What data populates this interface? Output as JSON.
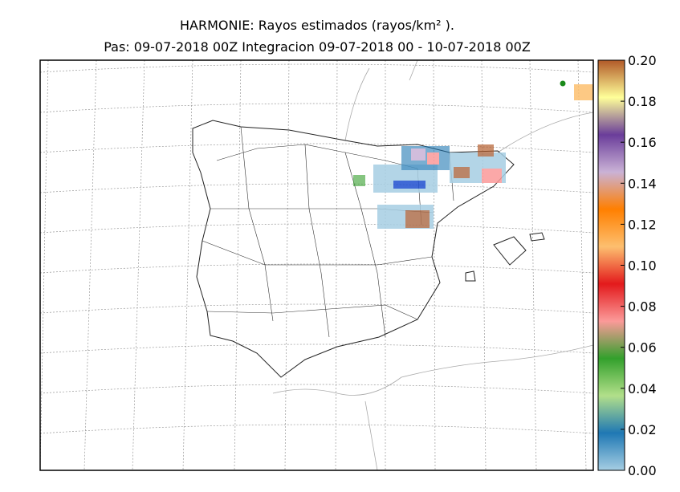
{
  "map": {
    "title": "HARMONIE: Rayos estimados  (rayos/km² ).",
    "subtitle": "Pas: 09-07-2018 00Z Integracion 09-07-2018 00 - 10-07-2018 00Z",
    "colorbar": {
      "lim": [
        0,
        0.2
      ],
      "ticks": [
        {
          "value": 0,
          "label": "0.00"
        },
        {
          "value": 0.02,
          "label": "0.02"
        },
        {
          "value": 0.04,
          "label": "0.04"
        },
        {
          "value": 0.06,
          "label": "0.06"
        },
        {
          "value": 0.08,
          "label": "0.08"
        },
        {
          "value": 0.1,
          "label": "0.10"
        },
        {
          "value": 0.12,
          "label": "0.12"
        },
        {
          "value": 0.14,
          "label": "0.14"
        },
        {
          "value": 0.16,
          "label": "0.16"
        },
        {
          "value": 0.18,
          "label": "0.18"
        },
        {
          "value": 0.2,
          "label": "0.20"
        }
      ],
      "colors": [
        "#a6cee3",
        "#1f78b4",
        "#b2df8a",
        "#33a02c",
        "#fb9a99",
        "#e31a1c",
        "#fdbf6f",
        "#ff7f00",
        "#cab2d6",
        "#6a3d9a",
        "#ffff99",
        "#b15928"
      ]
    }
  }
}
